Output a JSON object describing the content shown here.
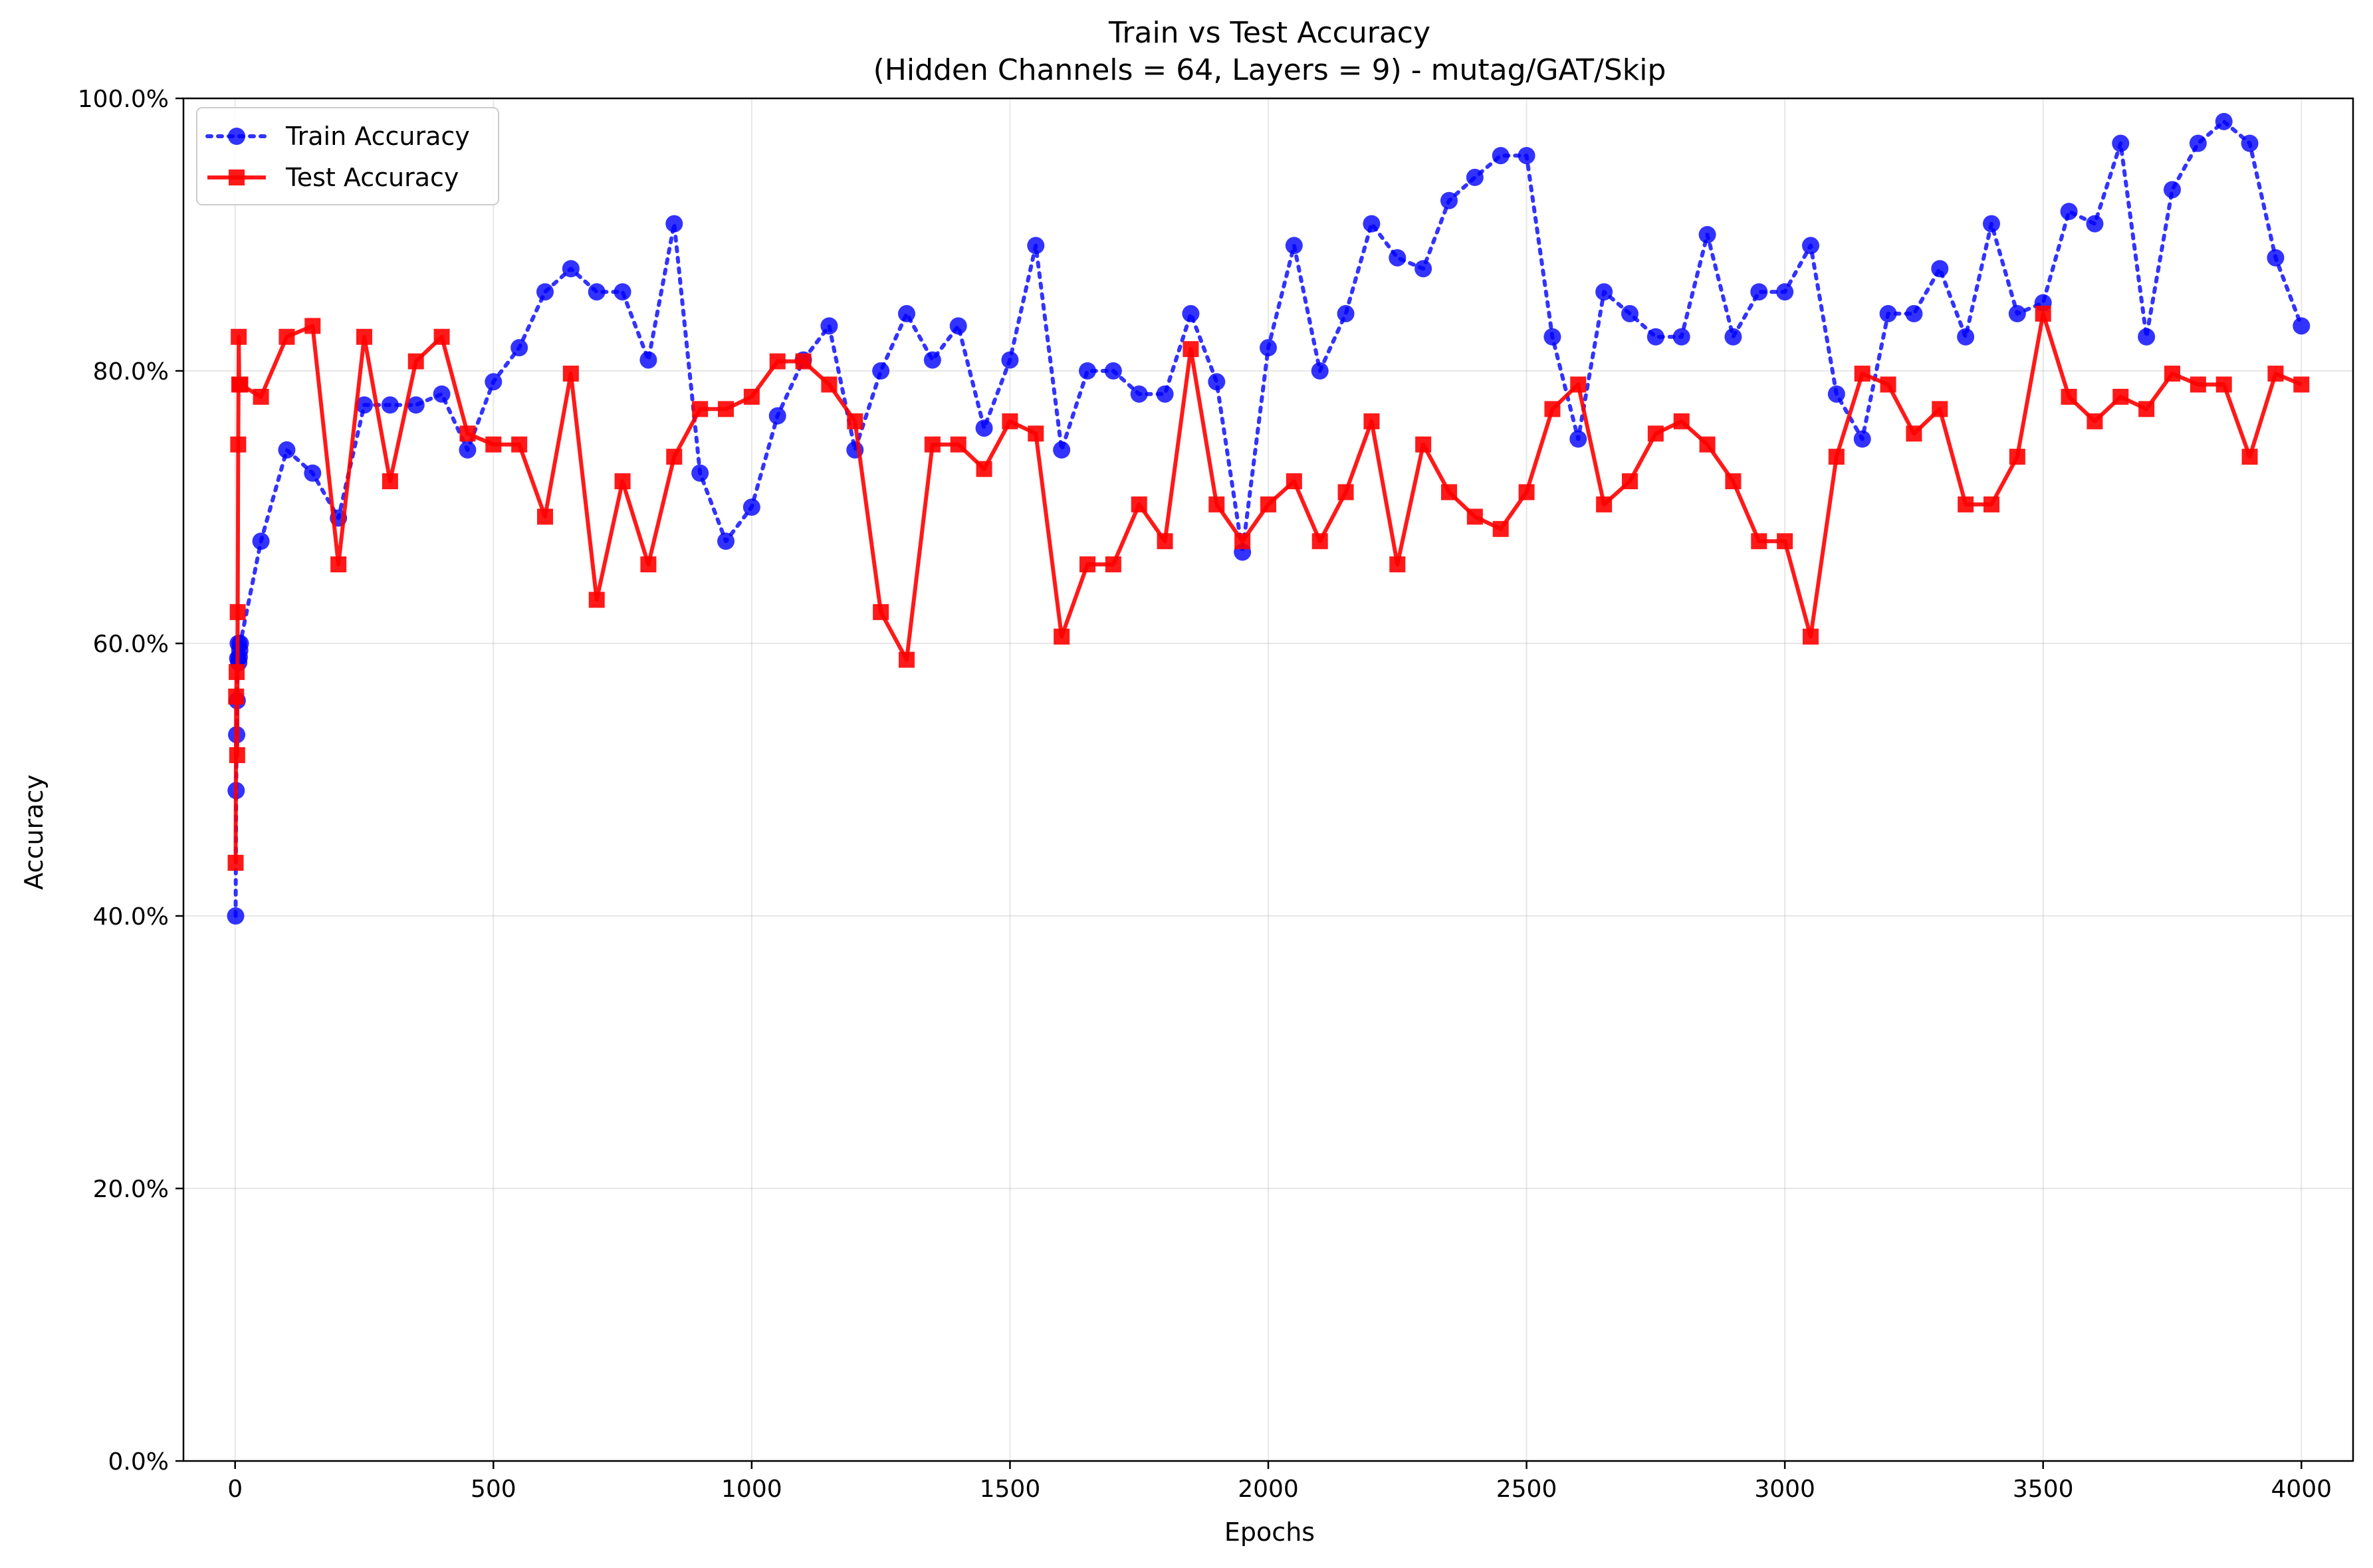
{
  "chart_data": {
    "type": "line",
    "title": "Train vs Test Accuracy",
    "subtitle": "(Hidden Channels = 64, Layers = 9) - mutag/GAT/Skip",
    "xlabel": "Epochs",
    "ylabel": "Accuracy",
    "xlim": [
      -100,
      4100
    ],
    "ylim": [
      0,
      100
    ],
    "xticks": [
      0,
      500,
      1000,
      1500,
      2000,
      2500,
      3000,
      3500,
      4000
    ],
    "yticks": [
      0,
      20,
      40,
      60,
      80,
      100
    ],
    "xtick_labels": [
      "0",
      "500",
      "1000",
      "1500",
      "2000",
      "2500",
      "3000",
      "3500",
      "4000"
    ],
    "ytick_labels": [
      "0.0%",
      "20.0%",
      "40.0%",
      "60.0%",
      "80.0%",
      "100.0%"
    ],
    "grid": true,
    "legend": "top-left",
    "series": [
      {
        "name": "Train Accuracy",
        "color": "#0000ff",
        "line_style": "dotted",
        "marker": "circle",
        "x": [
          1,
          2,
          3,
          4,
          5,
          6,
          7,
          8,
          9,
          10,
          50,
          100,
          150,
          200,
          250,
          300,
          350,
          400,
          450,
          500,
          550,
          600,
          650,
          700,
          750,
          800,
          850,
          900,
          950,
          1000,
          1050,
          1100,
          1150,
          1200,
          1250,
          1300,
          1350,
          1400,
          1450,
          1500,
          1550,
          1600,
          1650,
          1700,
          1750,
          1800,
          1850,
          1900,
          1950,
          2000,
          2050,
          2100,
          2150,
          2200,
          2250,
          2300,
          2350,
          2400,
          2450,
          2500,
          2550,
          2600,
          2650,
          2700,
          2750,
          2800,
          2850,
          2900,
          2950,
          3000,
          3050,
          3100,
          3150,
          3200,
          3250,
          3300,
          3350,
          3400,
          3450,
          3500,
          3550,
          3600,
          3650,
          3700,
          3750,
          3800,
          3850,
          3900,
          3950,
          4000
        ],
        "y": [
          40.0,
          49.2,
          53.3,
          55.8,
          58.9,
          60.0,
          58.6,
          59.0,
          59.5,
          60.0,
          67.5,
          74.2,
          72.5,
          69.2,
          77.5,
          77.5,
          77.5,
          78.3,
          74.2,
          79.2,
          81.7,
          85.8,
          87.5,
          85.8,
          85.8,
          80.8,
          90.8,
          72.5,
          67.5,
          70.0,
          76.7,
          80.8,
          83.3,
          74.2,
          80.0,
          84.2,
          80.8,
          83.3,
          75.8,
          80.8,
          89.2,
          74.2,
          80.0,
          80.0,
          78.3,
          78.3,
          84.2,
          79.2,
          66.7,
          81.7,
          89.2,
          80.0,
          84.2,
          90.8,
          88.3,
          87.5,
          92.5,
          94.2,
          95.8,
          95.8,
          82.5,
          75.0,
          85.8,
          84.2,
          82.5,
          82.5,
          90.0,
          82.5,
          85.8,
          85.8,
          89.2,
          78.3,
          75.0,
          84.2,
          84.2,
          87.5,
          82.5,
          90.8,
          84.2,
          85.0,
          91.7,
          90.8,
          96.7,
          82.5,
          93.3,
          96.7,
          98.3,
          96.7,
          88.3,
          83.3
        ]
      },
      {
        "name": "Test Accuracy",
        "color": "#ff0000",
        "line_style": "solid",
        "marker": "square",
        "x": [
          1,
          2,
          3,
          4,
          5,
          6,
          7,
          8,
          9,
          10,
          50,
          100,
          150,
          200,
          250,
          300,
          350,
          400,
          450,
          500,
          550,
          600,
          650,
          700,
          750,
          800,
          850,
          900,
          950,
          1000,
          1050,
          1100,
          1150,
          1200,
          1250,
          1300,
          1350,
          1400,
          1450,
          1500,
          1550,
          1600,
          1650,
          1700,
          1750,
          1800,
          1850,
          1900,
          1950,
          2000,
          2050,
          2100,
          2150,
          2200,
          2250,
          2300,
          2350,
          2400,
          2450,
          2500,
          2550,
          2600,
          2650,
          2700,
          2750,
          2800,
          2850,
          2900,
          2950,
          3000,
          3050,
          3100,
          3150,
          3200,
          3250,
          3300,
          3350,
          3400,
          3450,
          3500,
          3550,
          3600,
          3650,
          3700,
          3750,
          3800,
          3850,
          3900,
          3950,
          4000
        ],
        "y": [
          43.9,
          56.1,
          57.9,
          51.8,
          62.3,
          74.6,
          82.5,
          79.0,
          79.0,
          79.0,
          78.1,
          82.5,
          83.3,
          65.8,
          82.5,
          71.9,
          80.7,
          82.5,
          75.4,
          74.6,
          74.6,
          69.3,
          79.8,
          63.2,
          71.9,
          65.8,
          73.7,
          77.2,
          77.2,
          78.1,
          80.7,
          80.7,
          79.0,
          76.3,
          62.3,
          58.8,
          74.6,
          74.6,
          72.8,
          76.3,
          75.4,
          60.5,
          65.8,
          65.8,
          70.2,
          67.5,
          81.6,
          70.2,
          67.5,
          70.2,
          71.9,
          67.5,
          71.1,
          76.3,
          65.8,
          74.6,
          71.1,
          69.3,
          68.4,
          71.1,
          77.2,
          79.0,
          70.2,
          71.9,
          75.4,
          76.3,
          74.6,
          71.9,
          67.5,
          67.5,
          60.5,
          73.7,
          79.8,
          79.0,
          75.4,
          77.2,
          70.2,
          70.2,
          73.7,
          84.2,
          78.1,
          76.3,
          78.1,
          77.2,
          79.8,
          79.0,
          79.0,
          73.7,
          79.8,
          79.0
        ]
      }
    ]
  }
}
